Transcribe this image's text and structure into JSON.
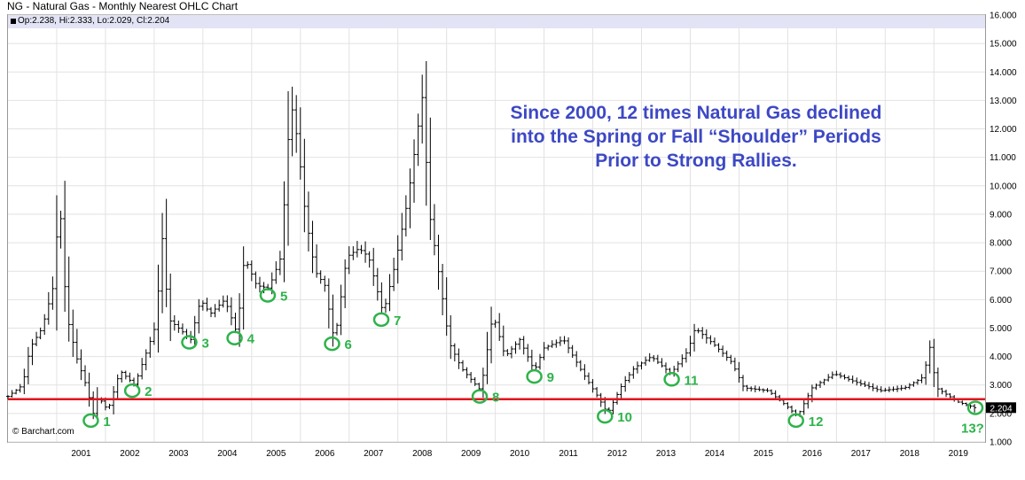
{
  "title": "NG - Natural Gas - Monthly Nearest OHLC Chart",
  "ohlc_legend": "Op:2.238, Hi:2.333, Lo:2.029, Cl:2.204",
  "watermark": "© Barchart.com",
  "annotation": {
    "line1": "Since 2000, 12 times Natural Gas declined",
    "line2": "into the Spring or Fall “Shoulder” Periods",
    "line3": "Prior to Strong Rallies."
  },
  "colors": {
    "bars": "#000000",
    "support_line": "#e0141e",
    "markers": "#2db34a",
    "annotation": "#3d48c4",
    "price_tag": "#000000",
    "legend_bg": "#e2e4f5"
  },
  "chart_data": {
    "type": "ohlc",
    "title": "NG - Natural Gas - Monthly Nearest OHLC Chart",
    "frequency": "monthly",
    "x_range": [
      2000.0,
      2020.05
    ],
    "ylim": [
      1.0,
      16.0
    ],
    "y_axis_side": "right",
    "grid": true,
    "x_ticks": [
      "2001",
      "2002",
      "2003",
      "2004",
      "2005",
      "2006",
      "2007",
      "2008",
      "2009",
      "2010",
      "2011",
      "2012",
      "2013",
      "2014",
      "2015",
      "2016",
      "2017",
      "2018",
      "2019"
    ],
    "y_ticks": [
      "1.000",
      "2.000",
      "3.000",
      "4.000",
      "5.000",
      "6.000",
      "7.000",
      "8.000",
      "9.000",
      "10.000",
      "11.000",
      "12.000",
      "13.000",
      "14.000",
      "15.000",
      "16.000"
    ],
    "last_price_label": "2.204",
    "support_level": 2.5,
    "close_anchors": [
      [
        2000.0,
        2.6
      ],
      [
        2000.3,
        3.0
      ],
      [
        2000.45,
        4.3
      ],
      [
        2000.7,
        5.0
      ],
      [
        2000.95,
        6.6
      ],
      [
        2001.05,
        9.8
      ],
      [
        2001.2,
        5.5
      ],
      [
        2001.4,
        4.0
      ],
      [
        2001.6,
        3.0
      ],
      [
        2001.75,
        2.0
      ],
      [
        2001.85,
        2.6
      ],
      [
        2002.05,
        2.1
      ],
      [
        2002.3,
        3.5
      ],
      [
        2002.6,
        3.0
      ],
      [
        2002.85,
        4.2
      ],
      [
        2003.05,
        5.2
      ],
      [
        2003.15,
        8.5
      ],
      [
        2003.3,
        5.3
      ],
      [
        2003.5,
        5.0
      ],
      [
        2003.75,
        4.6
      ],
      [
        2003.95,
        6.0
      ],
      [
        2004.15,
        5.5
      ],
      [
        2004.45,
        6.0
      ],
      [
        2004.7,
        4.8
      ],
      [
        2004.85,
        7.5
      ],
      [
        2005.1,
        6.5
      ],
      [
        2005.35,
        6.4
      ],
      [
        2005.6,
        7.5
      ],
      [
        2005.8,
        13.0
      ],
      [
        2005.95,
        11.5
      ],
      [
        2006.1,
        9.0
      ],
      [
        2006.3,
        7.0
      ],
      [
        2006.5,
        6.5
      ],
      [
        2006.7,
        4.5
      ],
      [
        2006.95,
        7.5
      ],
      [
        2007.2,
        7.8
      ],
      [
        2007.4,
        7.5
      ],
      [
        2007.7,
        5.5
      ],
      [
        2007.95,
        7.3
      ],
      [
        2008.2,
        9.5
      ],
      [
        2008.5,
        13.1
      ],
      [
        2008.65,
        9.0
      ],
      [
        2008.85,
        6.8
      ],
      [
        2009.05,
        4.5
      ],
      [
        2009.3,
        3.6
      ],
      [
        2009.7,
        2.8
      ],
      [
        2009.95,
        5.5
      ],
      [
        2010.2,
        4.0
      ],
      [
        2010.5,
        4.6
      ],
      [
        2010.8,
        3.5
      ],
      [
        2011.0,
        4.3
      ],
      [
        2011.4,
        4.6
      ],
      [
        2011.8,
        3.4
      ],
      [
        2012.1,
        2.6
      ],
      [
        2012.3,
        2.0
      ],
      [
        2012.6,
        3.0
      ],
      [
        2012.85,
        3.6
      ],
      [
        2013.2,
        4.0
      ],
      [
        2013.6,
        3.4
      ],
      [
        2013.95,
        4.2
      ],
      [
        2014.1,
        5.0
      ],
      [
        2014.5,
        4.4
      ],
      [
        2014.85,
        3.8
      ],
      [
        2015.1,
        2.9
      ],
      [
        2015.6,
        2.8
      ],
      [
        2015.95,
        2.3
      ],
      [
        2016.2,
        1.9
      ],
      [
        2016.5,
        2.9
      ],
      [
        2016.95,
        3.4
      ],
      [
        2017.4,
        3.1
      ],
      [
        2017.9,
        2.8
      ],
      [
        2018.4,
        2.9
      ],
      [
        2018.8,
        3.3
      ],
      [
        2018.9,
        4.5
      ],
      [
        2019.05,
        2.9
      ],
      [
        2019.5,
        2.4
      ],
      [
        2019.85,
        2.204
      ]
    ],
    "markers": [
      {
        "label": "1",
        "x": 2001.7,
        "y": 1.75
      },
      {
        "label": "2",
        "x": 2002.55,
        "y": 2.8
      },
      {
        "label": "3",
        "x": 2003.72,
        "y": 4.5
      },
      {
        "label": "4",
        "x": 2004.65,
        "y": 4.65
      },
      {
        "label": "5",
        "x": 2005.33,
        "y": 6.15
      },
      {
        "label": "6",
        "x": 2006.65,
        "y": 4.45
      },
      {
        "label": "7",
        "x": 2007.66,
        "y": 5.3
      },
      {
        "label": "8",
        "x": 2009.68,
        "y": 2.6
      },
      {
        "label": "9",
        "x": 2010.8,
        "y": 3.3
      },
      {
        "label": "10",
        "x": 2012.25,
        "y": 1.9
      },
      {
        "label": "11",
        "x": 2013.62,
        "y": 3.2
      },
      {
        "label": "12",
        "x": 2016.17,
        "y": 1.75
      },
      {
        "label": "13?",
        "x": 2019.85,
        "y": 2.2
      }
    ]
  }
}
